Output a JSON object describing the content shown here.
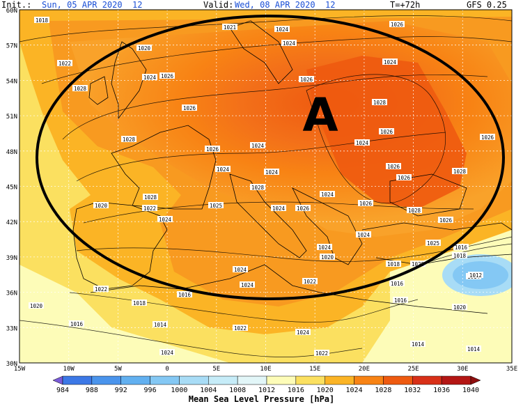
{
  "header": {
    "init_label": "Init.:",
    "init_value": "Sun, 05 APR 2020  12",
    "valid_label": "Valid:",
    "valid_value": "Wed, 08 APR 2020  12",
    "lead": "T=+72h",
    "model": "GFS 0.25"
  },
  "map": {
    "lat_labels": [
      "60N",
      "57N",
      "54N",
      "51N",
      "48N",
      "45N",
      "42N",
      "39N",
      "36N",
      "33N",
      "30N"
    ],
    "lon_labels": [
      "15W",
      "10W",
      "5W",
      "0",
      "5E",
      "10E",
      "15E",
      "20E",
      "25E",
      "30E",
      "35E"
    ],
    "annotation": "A",
    "isobar_labels": [
      "1018",
      "1021",
      "1024",
      "1026",
      "1020",
      "1022",
      "1024",
      "1026",
      "1028",
      "1026",
      "1024",
      "1024",
      "1026",
      "1028",
      "1026",
      "1028",
      "1026",
      "1024",
      "1024",
      "1026",
      "1024",
      "1024",
      "1028",
      "1026",
      "1028",
      "1028",
      "1022",
      "1020",
      "1025",
      "1024",
      "1026",
      "1024",
      "1026",
      "1024",
      "1028",
      "1026",
      "1026",
      "1024",
      "1024",
      "1020",
      "1016",
      "1018",
      "1020",
      "1016",
      "1014",
      "1024",
      "1024",
      "1022",
      "1022",
      "1016",
      "1018",
      "1014",
      "1016",
      "1022",
      "1024",
      "1022",
      "1018",
      "1014",
      "1014",
      "1012",
      "1016",
      "1020",
      "1025",
      "1024",
      "1020"
    ]
  },
  "legend": {
    "title": "Mean Sea Level Pressure [hPa]",
    "ticks": [
      "984",
      "988",
      "992",
      "996",
      "1000",
      "1004",
      "1008",
      "1012",
      "1016",
      "1020",
      "1024",
      "1028",
      "1032",
      "1036",
      "1040"
    ],
    "colors": [
      "#7a5bd9",
      "#3c78e6",
      "#4a94ec",
      "#62b0f0",
      "#84c8f4",
      "#a8dcf6",
      "#c6ecf8",
      "#e2f6f8",
      "#fdfcb8",
      "#fbe060",
      "#fbb425",
      "#f88314",
      "#ee5a10",
      "#d83018",
      "#b41614",
      "#8e0e0e"
    ]
  }
}
